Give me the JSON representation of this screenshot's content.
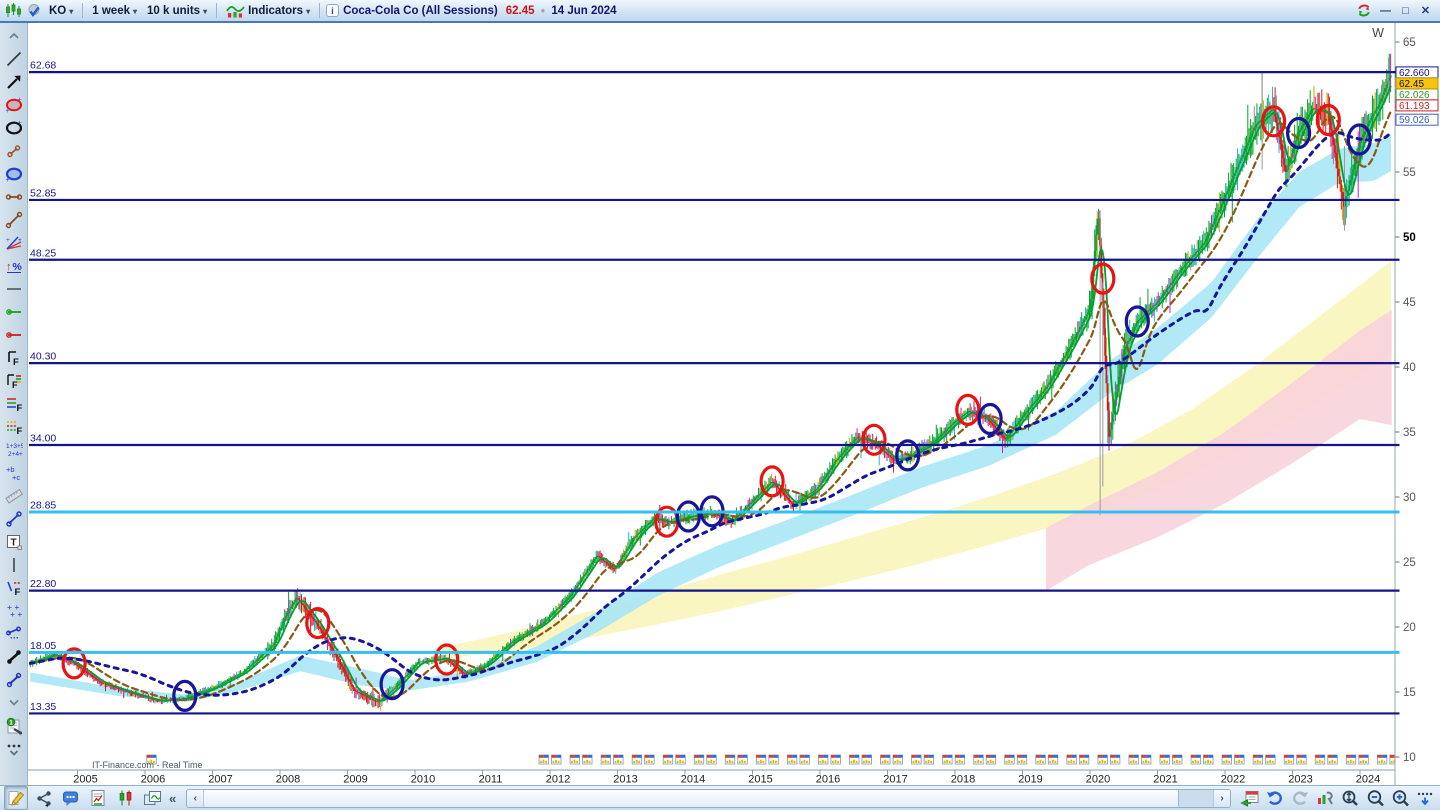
{
  "titlebar": {
    "symbol": "KO",
    "timeframe": "1 week",
    "units": "10 k units",
    "indicators": "Indicators",
    "instrument": "Coca-Cola Co (All Sessions)",
    "last_price": "62.45",
    "date": "14 Jun 2024"
  },
  "glyphs": {
    "caret": "▾",
    "dot": "●",
    "collapse_left": "«",
    "scroll_left": "‹",
    "scroll_right": "›",
    "minimize": "—",
    "restore": "□",
    "close": "✕"
  },
  "watermark": "IT-Finance.com - Real Time",
  "timeframe_marker": "W",
  "left_toolbar": {
    "tools": [
      "collapse-up",
      "trend-line",
      "arrow-ne",
      "ellipse-red",
      "ellipse-black",
      "segment-short",
      "ellipse-blue",
      "segment-horizontal",
      "segment-diagonal",
      "trend-fan",
      "percent-change",
      "separator-line",
      "hline-green",
      "hline-red",
      "fib-black",
      "fib-color",
      "fib-levels",
      "fib-levels-2",
      "elliott-wave",
      "abcd-pattern",
      "ruler",
      "segment-blue",
      "text-tool",
      "vertical-line",
      "fib-time",
      "plus-cluster",
      "segment-dotted",
      "segment-black",
      "segment-blue-2",
      "collapse-down",
      "chart-notes",
      "more-tools"
    ]
  },
  "statusbar": {
    "left_icons": [
      "draw-mode",
      "share",
      "comments",
      "report",
      "candlestick-style",
      "workspace"
    ],
    "right_icons": [
      "calendar-step",
      "undo",
      "redo",
      "settings-wrench",
      "zoom-vertical-fit",
      "zoom-out",
      "zoom-in",
      "scroll-right-edge"
    ]
  },
  "colors": {
    "navy_line": "#14148c",
    "cyan_line": "#35bfee",
    "up": "#0aa12e",
    "down": "#cc2020",
    "alt1": "#c424c4",
    "alt2": "#27b6cf",
    "alt3": "#c2ae00",
    "alt4": "#8f8f8f",
    "band_cyan": "#a8e7f5",
    "band_yellow": "#f9f5bb",
    "band_pink": "#f8d3da",
    "circle_red": "#e81414",
    "circle_blue": "#16169a",
    "last_price_bg": "#f6c50e"
  },
  "chart_data": {
    "type": "candlestick",
    "symbol": "KO",
    "period": "weekly",
    "x_start": 2004.3,
    "x_end": 2024.46,
    "ylim": [
      9.6,
      66.3
    ],
    "y_ticks": [
      10,
      15,
      20,
      25,
      30,
      35,
      40,
      45,
      50,
      55,
      60,
      65
    ],
    "x_years": [
      2005,
      2006,
      2007,
      2008,
      2009,
      2010,
      2011,
      2012,
      2013,
      2014,
      2015,
      2016,
      2017,
      2018,
      2019,
      2020,
      2021,
      2022,
      2023,
      2024
    ],
    "levels": [
      {
        "price": 62.68,
        "label": "62.68",
        "style": "navy"
      },
      {
        "price": 52.85,
        "label": "52.85",
        "style": "navy"
      },
      {
        "price": 48.25,
        "label": "48.25",
        "style": "navy"
      },
      {
        "price": 40.3,
        "label": "40.30",
        "style": "navy"
      },
      {
        "price": 34.0,
        "label": "34.00",
        "style": "navy"
      },
      {
        "price": 28.85,
        "label": "28.85",
        "style": "cyan"
      },
      {
        "price": 22.8,
        "label": "22.80",
        "style": "navy"
      },
      {
        "price": 18.05,
        "label": "18.05",
        "style": "cyan"
      },
      {
        "price": 13.35,
        "label": "13.35",
        "style": "navy"
      }
    ],
    "price_tags": [
      {
        "text": "62.660",
        "value": 62.66,
        "style": "level"
      },
      {
        "text": "62.45",
        "value": 62.45,
        "style": "last"
      },
      {
        "text": "62.026",
        "value": 62.026,
        "style": "ma-fast"
      },
      {
        "text": "61.193",
        "value": 61.193,
        "style": "ma-mid"
      },
      {
        "text": "59.026",
        "value": 59.026,
        "style": "ma-slow"
      }
    ],
    "price_path": [
      [
        2004.3,
        17.2
      ],
      [
        2004.65,
        17.9
      ],
      [
        2004.95,
        17.2
      ],
      [
        2005.35,
        15.7
      ],
      [
        2005.8,
        14.9
      ],
      [
        2006.2,
        14.3
      ],
      [
        2006.6,
        14.5
      ],
      [
        2007.0,
        15.3
      ],
      [
        2007.45,
        16.5
      ],
      [
        2007.9,
        18.6
      ],
      [
        2008.1,
        21.0
      ],
      [
        2008.25,
        22.3
      ],
      [
        2008.55,
        20.2
      ],
      [
        2008.85,
        17.6
      ],
      [
        2009.1,
        15.1
      ],
      [
        2009.45,
        14.2
      ],
      [
        2009.7,
        15.3
      ],
      [
        2010.05,
        17.3
      ],
      [
        2010.45,
        17.6
      ],
      [
        2010.75,
        16.3
      ],
      [
        2011.05,
        17.1
      ],
      [
        2011.45,
        18.9
      ],
      [
        2011.9,
        20.3
      ],
      [
        2012.3,
        22.4
      ],
      [
        2012.7,
        25.5
      ],
      [
        2012.95,
        24.4
      ],
      [
        2013.25,
        26.9
      ],
      [
        2013.55,
        28.4
      ],
      [
        2013.75,
        28.0
      ],
      [
        2014.05,
        28.5
      ],
      [
        2014.4,
        28.8
      ],
      [
        2014.7,
        28.1
      ],
      [
        2015.0,
        29.7
      ],
      [
        2015.29,
        31.2
      ],
      [
        2015.6,
        29.4
      ],
      [
        2015.95,
        30.6
      ],
      [
        2016.25,
        32.9
      ],
      [
        2016.55,
        34.6
      ],
      [
        2016.8,
        34.2
      ],
      [
        2017.1,
        32.8
      ],
      [
        2017.3,
        33.1
      ],
      [
        2017.7,
        34.3
      ],
      [
        2018.0,
        35.8
      ],
      [
        2018.2,
        36.6
      ],
      [
        2018.5,
        35.9
      ],
      [
        2018.75,
        34.4
      ],
      [
        2019.0,
        36.2
      ],
      [
        2019.35,
        38.4
      ],
      [
        2019.7,
        41.5
      ],
      [
        2020.0,
        44.5
      ],
      [
        2020.12,
        52.2
      ],
      [
        2020.28,
        34.6
      ],
      [
        2020.5,
        41.2
      ],
      [
        2020.7,
        43.5
      ],
      [
        2021.0,
        45.0
      ],
      [
        2021.35,
        47.5
      ],
      [
        2021.7,
        49.6
      ],
      [
        2021.95,
        52.5
      ],
      [
        2022.2,
        55.6
      ],
      [
        2022.45,
        58.6
      ],
      [
        2022.72,
        59.9
      ],
      [
        2022.9,
        54.9
      ],
      [
        2023.09,
        58.1
      ],
      [
        2023.3,
        59.9
      ],
      [
        2023.53,
        59.5
      ],
      [
        2023.76,
        52.3
      ],
      [
        2023.99,
        57.2
      ],
      [
        2024.15,
        59.0
      ],
      [
        2024.3,
        60.4
      ],
      [
        2024.45,
        62.45
      ]
    ],
    "ellipse_markers": [
      [
        2004.95,
        17.2,
        "red"
      ],
      [
        2006.59,
        14.7,
        "blue"
      ],
      [
        2008.56,
        20.3,
        "red"
      ],
      [
        2009.66,
        15.6,
        "blue"
      ],
      [
        2010.47,
        17.5,
        "red"
      ],
      [
        2013.73,
        28.1,
        "red"
      ],
      [
        2014.05,
        28.5,
        "blue"
      ],
      [
        2014.4,
        28.9,
        "blue"
      ],
      [
        2015.29,
        31.2,
        "red"
      ],
      [
        2016.8,
        34.4,
        "red"
      ],
      [
        2017.3,
        33.2,
        "blue"
      ],
      [
        2018.19,
        36.7,
        "red"
      ],
      [
        2018.52,
        36.0,
        "blue"
      ],
      [
        2020.19,
        46.8,
        "red"
      ],
      [
        2020.7,
        43.5,
        "blue"
      ],
      [
        2022.72,
        58.9,
        "red"
      ],
      [
        2023.09,
        58.0,
        "blue"
      ],
      [
        2023.53,
        59.0,
        "red"
      ],
      [
        2023.99,
        57.5,
        "blue"
      ]
    ],
    "bands": {
      "cyan": [
        [
          2004.3,
          16.5,
          15.8
        ],
        [
          2005.6,
          15.3,
          14.7
        ],
        [
          2006.6,
          14.8,
          14.2
        ],
        [
          2007.4,
          15.8,
          15.1
        ],
        [
          2008.3,
          17.8,
          16.6
        ],
        [
          2009.2,
          16.8,
          15.5
        ],
        [
          2009.9,
          15.9,
          15.1
        ],
        [
          2010.8,
          16.6,
          15.8
        ],
        [
          2011.8,
          18.5,
          17.3
        ],
        [
          2012.7,
          21.2,
          19.6
        ],
        [
          2013.6,
          24.2,
          22.4
        ],
        [
          2014.5,
          26.3,
          24.6
        ],
        [
          2015.5,
          28.2,
          26.6
        ],
        [
          2016.5,
          30.2,
          28.6
        ],
        [
          2017.5,
          32.3,
          30.7
        ],
        [
          2018.5,
          34.0,
          32.4
        ],
        [
          2019.5,
          36.6,
          34.8
        ],
        [
          2020.3,
          40.5,
          38.0
        ],
        [
          2021.0,
          43.0,
          40.2
        ],
        [
          2021.8,
          46.5,
          43.8
        ],
        [
          2022.5,
          51.5,
          48.5
        ],
        [
          2023.1,
          55.0,
          52.3
        ],
        [
          2023.7,
          56.8,
          54.2
        ],
        [
          2024.2,
          57.2,
          54.3
        ],
        [
          2024.5,
          58.0,
          55.2
        ]
      ],
      "yellow": [
        [
          2010.3,
          18.3,
          17.5
        ],
        [
          2011.5,
          19.7,
          18.2
        ],
        [
          2012.5,
          21.1,
          19.1
        ],
        [
          2013.5,
          22.5,
          20.1
        ],
        [
          2014.5,
          24.0,
          21.2
        ],
        [
          2015.5,
          25.4,
          22.4
        ],
        [
          2016.5,
          26.9,
          23.6
        ],
        [
          2017.5,
          28.4,
          24.9
        ],
        [
          2018.5,
          30.0,
          26.3
        ],
        [
          2019.5,
          31.8,
          27.8
        ],
        [
          2020.5,
          33.9,
          29.5
        ],
        [
          2021.5,
          36.7,
          31.7
        ],
        [
          2022.5,
          40.3,
          34.4
        ],
        [
          2023.5,
          44.3,
          37.7
        ],
        [
          2024.5,
          48.3,
          41.0
        ]
      ],
      "pink": [
        [
          2019.35,
          27.6,
          22.8
        ],
        [
          2020.0,
          29.4,
          24.8
        ],
        [
          2021.0,
          31.9,
          26.9
        ],
        [
          2022.0,
          35.0,
          29.5
        ],
        [
          2023.0,
          38.8,
          32.6
        ],
        [
          2024.0,
          42.8,
          36.0
        ],
        [
          2024.5,
          44.5,
          35.5
        ]
      ]
    },
    "long_wicks": [
      [
        2020.15,
        51.5,
        28.6
      ],
      [
        2020.19,
        46.5,
        30.8
      ],
      [
        2023.77,
        57.0,
        50.5
      ],
      [
        2022.55,
        62.6,
        55.2
      ],
      [
        2024.42,
        63.8,
        61.2
      ]
    ],
    "event_groups": {
      "start": 2012.0,
      "step": 0.46,
      "count": 28,
      "single": [
        2006.1
      ]
    },
    "mas": [
      {
        "name": "ma-fast",
        "window": 8,
        "color": "#00a032",
        "width": 1.8,
        "dash": ""
      },
      {
        "name": "ma-mid",
        "window": 26,
        "color": "#8a5a14",
        "width": 2.2,
        "dash": "6 4"
      },
      {
        "name": "ma-slow",
        "window": 80,
        "color": "#16169a",
        "width": 3,
        "dash": "4 5.5"
      }
    ]
  }
}
